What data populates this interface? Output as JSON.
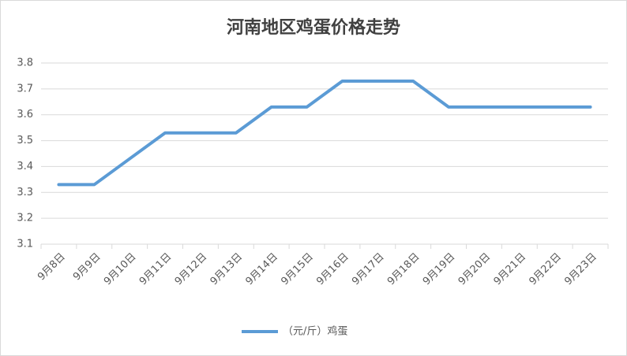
{
  "chart_data": {
    "type": "line",
    "title": "河南地区鸡蛋价格走势",
    "categories": [
      "9月8日",
      "9月9日",
      "9月10日",
      "9月11日",
      "9月12日",
      "9月13日",
      "9月14日",
      "9月15日",
      "9月16日",
      "9月17日",
      "9月18日",
      "9月19日",
      "9月20日",
      "9月21日",
      "9月22日",
      "9月23日"
    ],
    "series": [
      {
        "name": "（元/斤）鸡蛋",
        "color": "#5b9bd5",
        "values": [
          3.33,
          3.33,
          3.43,
          3.53,
          3.53,
          3.53,
          3.63,
          3.63,
          3.73,
          3.73,
          3.73,
          3.63,
          3.63,
          3.63,
          3.63,
          3.63
        ]
      }
    ],
    "ylim": [
      3.1,
      3.8
    ],
    "yticks": [
      3.1,
      3.2,
      3.3,
      3.4,
      3.5,
      3.6,
      3.7,
      3.8
    ],
    "grid": true,
    "legend": "bottom"
  }
}
